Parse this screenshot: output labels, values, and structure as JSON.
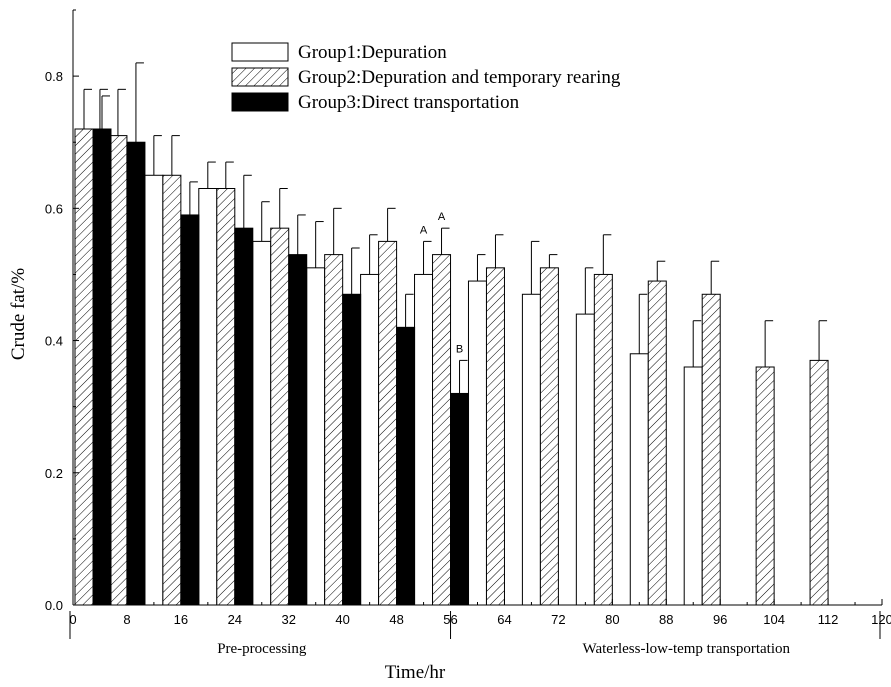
{
  "chart_data": {
    "type": "bar",
    "xlabel": "Time/hr",
    "ylabel": "Crude fat/%",
    "xlim": [
      0,
      120
    ],
    "ylim": [
      0,
      0.9
    ],
    "x_ticks": [
      "0",
      "8",
      "16",
      "24",
      "32",
      "40",
      "48",
      "56",
      "64",
      "72",
      "80",
      "88",
      "96",
      "104",
      "112",
      "120"
    ],
    "y_ticks": [
      "0.0",
      "0.2",
      "0.4",
      "0.6",
      "0.8"
    ],
    "series": [
      {
        "name": "Group1:Depuration",
        "fill": "white",
        "points": [
          {
            "x": 8,
            "value": 0.71,
            "err": 0.07
          },
          {
            "x": 16,
            "value": 0.65,
            "err": 0.06
          },
          {
            "x": 24,
            "value": 0.63,
            "err": 0.04
          },
          {
            "x": 32,
            "value": 0.55,
            "err": 0.06
          },
          {
            "x": 40,
            "value": 0.51,
            "err": 0.07
          },
          {
            "x": 48,
            "value": 0.5,
            "err": 0.06
          },
          {
            "x": 56,
            "value": 0.5,
            "err": 0.05
          },
          {
            "x": 64,
            "value": 0.49,
            "err": 0.04
          },
          {
            "x": 72,
            "value": 0.47,
            "err": 0.08
          },
          {
            "x": 80,
            "value": 0.44,
            "err": 0.07
          },
          {
            "x": 88,
            "value": 0.38,
            "err": 0.09
          },
          {
            "x": 96,
            "value": 0.36,
            "err": 0.07
          }
        ]
      },
      {
        "name": "Group2:Depuration and temporary rearing",
        "fill": "hatched",
        "points": [
          {
            "x": 0,
            "value": 0.72,
            "err": 0.06
          },
          {
            "x": 8,
            "value": 0.71,
            "err": 0.07
          },
          {
            "x": 16,
            "value": 0.65,
            "err": 0.06
          },
          {
            "x": 24,
            "value": 0.63,
            "err": 0.04
          },
          {
            "x": 32,
            "value": 0.57,
            "err": 0.06
          },
          {
            "x": 40,
            "value": 0.53,
            "err": 0.07
          },
          {
            "x": 48,
            "value": 0.55,
            "err": 0.05
          },
          {
            "x": 56,
            "value": 0.53,
            "err": 0.04
          },
          {
            "x": 64,
            "value": 0.51,
            "err": 0.05
          },
          {
            "x": 72,
            "value": 0.51,
            "err": 0.02
          },
          {
            "x": 80,
            "value": 0.5,
            "err": 0.06
          },
          {
            "x": 88,
            "value": 0.49,
            "err": 0.03
          },
          {
            "x": 96,
            "value": 0.47,
            "err": 0.05
          },
          {
            "x": 104,
            "value": 0.36,
            "err": 0.07
          },
          {
            "x": 112,
            "value": 0.37,
            "err": 0.06
          }
        ]
      },
      {
        "name": "Group3:Direct transportation",
        "fill": "black",
        "points": [
          {
            "x": 0,
            "value": 0.72,
            "err": 0.05
          },
          {
            "x": 8,
            "value": 0.7,
            "err": 0.12
          },
          {
            "x": 16,
            "value": 0.59,
            "err": 0.05
          },
          {
            "x": 24,
            "value": 0.57,
            "err": 0.08
          },
          {
            "x": 32,
            "value": 0.53,
            "err": 0.06
          },
          {
            "x": 40,
            "value": 0.47,
            "err": 0.07
          },
          {
            "x": 48,
            "value": 0.42,
            "err": 0.05
          },
          {
            "x": 56,
            "value": 0.32,
            "err": 0.05
          }
        ]
      }
    ],
    "annotations": [
      {
        "text": "A",
        "series": 0,
        "x": 56
      },
      {
        "text": "A",
        "series": 1,
        "x": 56
      },
      {
        "text": "B",
        "series": 2,
        "x": 56
      }
    ],
    "phases": [
      {
        "label": "Pre-processing",
        "x_from": 0,
        "x_to": 56
      },
      {
        "label": "Waterless-low-temp transportation",
        "x_from": 56,
        "x_to": 120
      }
    ],
    "legend_position": "top-center",
    "grid": false
  }
}
